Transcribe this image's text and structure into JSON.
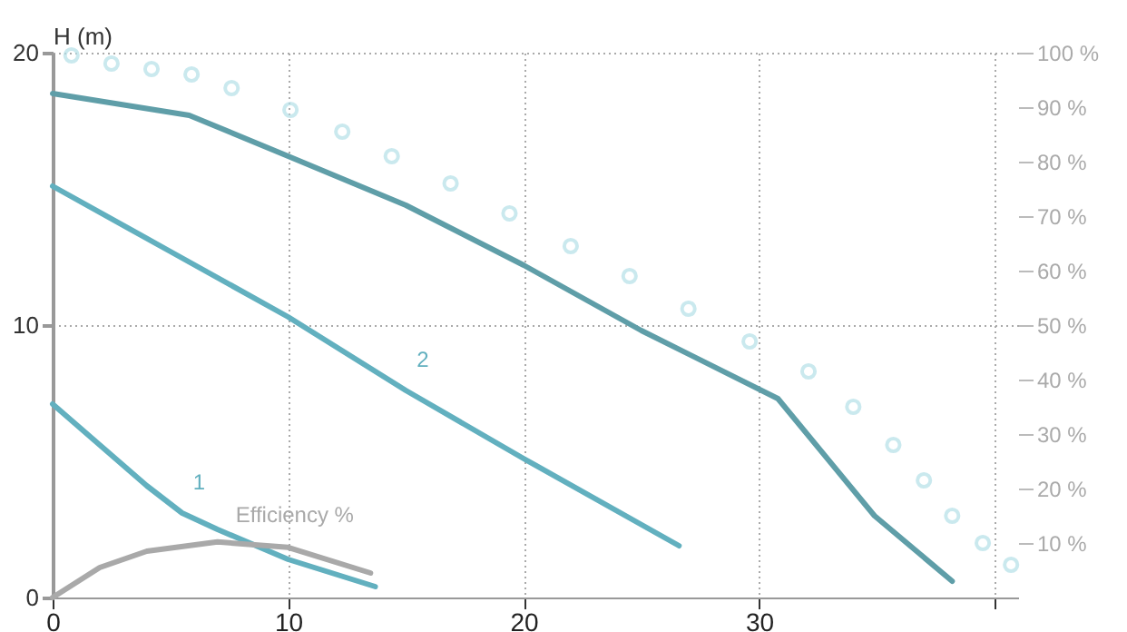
{
  "chart_data": {
    "type": "line",
    "ylabel": "H (m)",
    "xlim": [
      0,
      41
    ],
    "ylim": [
      0,
      20
    ],
    "y2lim": [
      0,
      100
    ],
    "xticks": [
      0,
      10,
      20,
      30,
      {
        "value": 40,
        "label": null
      }
    ],
    "yticks": [
      0,
      10,
      20
    ],
    "y2ticks": [
      {
        "value": 10,
        "label": "10 %"
      },
      {
        "value": 20,
        "label": "20 %"
      },
      {
        "value": 30,
        "label": "30 %"
      },
      {
        "value": 40,
        "label": "40 %"
      },
      {
        "value": 50,
        "label": "50 %"
      },
      {
        "value": 60,
        "label": "60 %"
      },
      {
        "value": 70,
        "label": "70 %"
      },
      {
        "value": 80,
        "label": "80 %"
      },
      {
        "value": 90,
        "label": "90 %"
      },
      {
        "value": 100,
        "label": "100 %"
      }
    ],
    "grid": true,
    "line_style": "solid",
    "series": [
      {
        "color": "#5f9ea8",
        "x": [
          0,
          5.8,
          10,
          15,
          20,
          25,
          30.8,
          34.9,
          38.2
        ],
        "values": [
          18.5,
          17.7,
          16.2,
          14.4,
          12.2,
          9.8,
          7.3,
          3.0,
          0.6
        ]
      },
      {
        "name": "2",
        "color": "#62b0bf",
        "x": [
          0,
          5,
          10,
          15,
          20,
          26.6
        ],
        "values": [
          15.1,
          12.7,
          10.3,
          7.6,
          5.1,
          1.9
        ]
      },
      {
        "name": "1",
        "color": "#62b0bf",
        "x": [
          0,
          2,
          4,
          5.5,
          7,
          10,
          13.7
        ],
        "values": [
          7.1,
          5.6,
          4.1,
          3.1,
          2.5,
          1.4,
          0.4
        ]
      },
      {
        "type": "scatter",
        "marker": "circle",
        "color": "#b5e0e8",
        "x": [
          0.8,
          2.5,
          4.2,
          5.9,
          7.6,
          10.1,
          12.3,
          14.4,
          16.9,
          19.4,
          22.0,
          24.5,
          27.0,
          29.6,
          32.1,
          34.0,
          35.7,
          37.0,
          38.2,
          39.5,
          40.7
        ],
        "values": [
          19.9,
          19.6,
          19.4,
          19.2,
          18.7,
          17.9,
          17.1,
          16.2,
          15.2,
          14.1,
          12.9,
          11.8,
          10.6,
          9.4,
          8.3,
          7.0,
          5.6,
          4.3,
          3.0,
          2.0,
          1.2
        ]
      },
      {
        "name": "Efficiency %",
        "axis": "y2",
        "color": "#a9a9a9",
        "x": [
          0,
          2,
          4,
          7,
          10,
          13.5
        ],
        "values": [
          0,
          5.5,
          8.5,
          10.2,
          9.2,
          4.5
        ]
      }
    ]
  }
}
